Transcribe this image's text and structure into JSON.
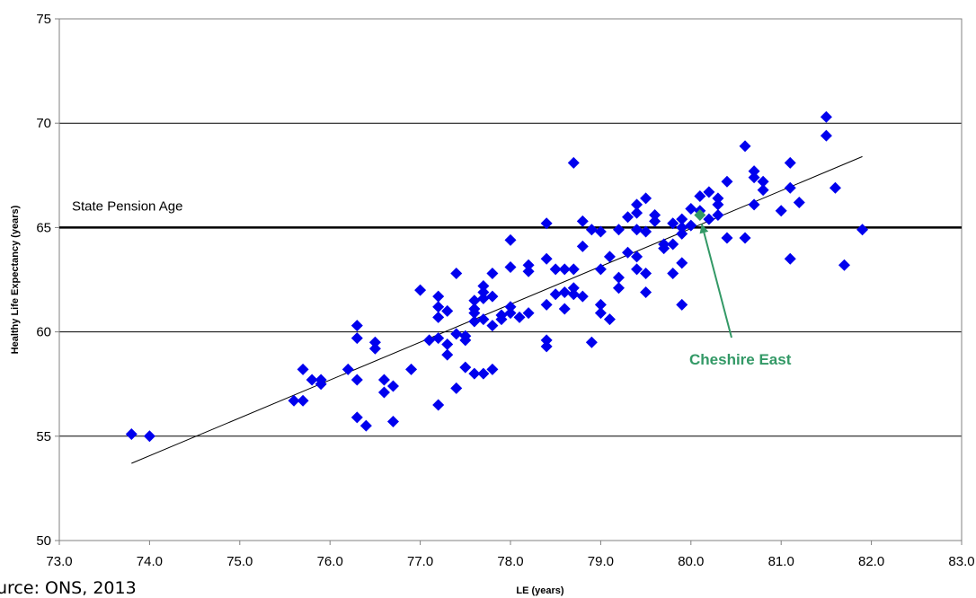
{
  "chart_data": {
    "type": "scatter",
    "title": "",
    "xlabel": "LE (years)",
    "ylabel": "Healthy Life Expectancy (years)",
    "xlim": [
      73.0,
      83.0
    ],
    "ylim": [
      50,
      75
    ],
    "x_ticks": [
      "73.0",
      "74.0",
      "75.0",
      "76.0",
      "77.0",
      "78.0",
      "79.0",
      "80.0",
      "81.0",
      "82.0",
      "83.0"
    ],
    "y_ticks": [
      "50",
      "55",
      "60",
      "65",
      "70",
      "75"
    ],
    "grid": "horizontal",
    "series": [
      {
        "color": "#0000ee",
        "marker": "diamond",
        "points": [
          [
            73.8,
            55.1
          ],
          [
            74.0,
            55.0
          ],
          [
            75.6,
            56.7
          ],
          [
            75.7,
            56.7
          ],
          [
            75.7,
            58.2
          ],
          [
            75.8,
            57.7
          ],
          [
            75.9,
            57.5
          ],
          [
            75.9,
            57.7
          ],
          [
            76.2,
            58.2
          ],
          [
            76.3,
            55.9
          ],
          [
            76.3,
            57.7
          ],
          [
            76.3,
            59.7
          ],
          [
            76.3,
            60.3
          ],
          [
            76.4,
            55.5
          ],
          [
            76.5,
            59.2
          ],
          [
            76.5,
            59.5
          ],
          [
            76.6,
            57.1
          ],
          [
            76.6,
            57.7
          ],
          [
            76.7,
            55.7
          ],
          [
            76.7,
            57.4
          ],
          [
            76.9,
            58.2
          ],
          [
            77.0,
            62.0
          ],
          [
            77.1,
            59.6
          ],
          [
            77.2,
            56.5
          ],
          [
            77.2,
            59.7
          ],
          [
            77.2,
            60.7
          ],
          [
            77.2,
            61.2
          ],
          [
            77.2,
            61.7
          ],
          [
            77.3,
            58.9
          ],
          [
            77.3,
            59.4
          ],
          [
            77.3,
            61.0
          ],
          [
            77.4,
            57.3
          ],
          [
            77.4,
            59.9
          ],
          [
            77.4,
            62.8
          ],
          [
            77.5,
            58.3
          ],
          [
            77.5,
            59.6
          ],
          [
            77.5,
            59.8
          ],
          [
            77.6,
            58.0
          ],
          [
            77.6,
            60.5
          ],
          [
            77.6,
            60.9
          ],
          [
            77.6,
            61.1
          ],
          [
            77.6,
            61.5
          ],
          [
            77.7,
            58.0
          ],
          [
            77.7,
            60.6
          ],
          [
            77.7,
            61.6
          ],
          [
            77.7,
            61.9
          ],
          [
            77.7,
            62.2
          ],
          [
            77.8,
            58.2
          ],
          [
            77.8,
            60.3
          ],
          [
            77.8,
            61.7
          ],
          [
            77.8,
            62.8
          ],
          [
            77.9,
            60.6
          ],
          [
            77.9,
            60.8
          ],
          [
            78.0,
            60.9
          ],
          [
            78.0,
            61.2
          ],
          [
            78.0,
            63.1
          ],
          [
            78.0,
            64.4
          ],
          [
            78.1,
            60.7
          ],
          [
            78.2,
            60.9
          ],
          [
            78.2,
            62.9
          ],
          [
            78.2,
            63.2
          ],
          [
            78.4,
            59.3
          ],
          [
            78.4,
            59.6
          ],
          [
            78.4,
            61.3
          ],
          [
            78.4,
            63.5
          ],
          [
            78.4,
            65.2
          ],
          [
            78.5,
            61.8
          ],
          [
            78.5,
            63.0
          ],
          [
            78.6,
            61.1
          ],
          [
            78.6,
            61.9
          ],
          [
            78.6,
            63.0
          ],
          [
            78.7,
            61.8
          ],
          [
            78.7,
            62.1
          ],
          [
            78.7,
            63.0
          ],
          [
            78.7,
            68.1
          ],
          [
            78.8,
            61.7
          ],
          [
            78.8,
            64.1
          ],
          [
            78.8,
            65.3
          ],
          [
            78.9,
            59.5
          ],
          [
            78.9,
            64.9
          ],
          [
            79.0,
            60.9
          ],
          [
            79.0,
            61.3
          ],
          [
            79.0,
            63.0
          ],
          [
            79.0,
            64.8
          ],
          [
            79.1,
            60.6
          ],
          [
            79.1,
            63.6
          ],
          [
            79.2,
            62.1
          ],
          [
            79.2,
            62.6
          ],
          [
            79.2,
            64.9
          ],
          [
            79.3,
            63.8
          ],
          [
            79.3,
            65.5
          ],
          [
            79.4,
            63.0
          ],
          [
            79.4,
            63.6
          ],
          [
            79.4,
            64.9
          ],
          [
            79.4,
            65.7
          ],
          [
            79.4,
            66.1
          ],
          [
            79.5,
            61.9
          ],
          [
            79.5,
            62.8
          ],
          [
            79.5,
            64.8
          ],
          [
            79.5,
            66.4
          ],
          [
            79.6,
            65.3
          ],
          [
            79.6,
            65.6
          ],
          [
            79.7,
            64.0
          ],
          [
            79.7,
            64.2
          ],
          [
            79.8,
            62.8
          ],
          [
            79.8,
            64.2
          ],
          [
            79.8,
            65.2
          ],
          [
            79.9,
            61.3
          ],
          [
            79.9,
            63.3
          ],
          [
            79.9,
            64.7
          ],
          [
            79.9,
            65.0
          ],
          [
            79.9,
            65.4
          ],
          [
            80.0,
            65.1
          ],
          [
            80.0,
            65.9
          ],
          [
            80.1,
            65.8
          ],
          [
            80.1,
            66.5
          ],
          [
            80.2,
            65.4
          ],
          [
            80.2,
            66.7
          ],
          [
            80.3,
            65.6
          ],
          [
            80.3,
            66.1
          ],
          [
            80.3,
            66.4
          ],
          [
            80.4,
            64.5
          ],
          [
            80.4,
            67.2
          ],
          [
            80.6,
            64.5
          ],
          [
            80.6,
            68.9
          ],
          [
            80.7,
            66.1
          ],
          [
            80.7,
            67.4
          ],
          [
            80.7,
            67.7
          ],
          [
            80.8,
            66.8
          ],
          [
            80.8,
            67.2
          ],
          [
            81.0,
            65.8
          ],
          [
            81.1,
            63.5
          ],
          [
            81.1,
            66.9
          ],
          [
            81.1,
            68.1
          ],
          [
            81.2,
            66.2
          ],
          [
            81.5,
            69.4
          ],
          [
            81.5,
            70.3
          ],
          [
            81.6,
            66.9
          ],
          [
            81.7,
            63.2
          ],
          [
            81.9,
            64.9
          ]
        ]
      },
      {
        "name": "Cheshire East",
        "color": "#339966",
        "marker": "diamond",
        "points": [
          [
            80.1,
            65.6
          ]
        ]
      }
    ],
    "trendline": {
      "from": [
        73.8,
        53.7
      ],
      "to": [
        81.9,
        68.4
      ],
      "color": "#000000"
    },
    "reference_line": {
      "y": 65,
      "label": "State Pension Age",
      "color": "#000000"
    },
    "annotation": {
      "text": "Cheshire East",
      "color": "#339966",
      "points_to": [
        80.1,
        65.6
      ]
    }
  },
  "source_note": "urce: ONS, 2013"
}
